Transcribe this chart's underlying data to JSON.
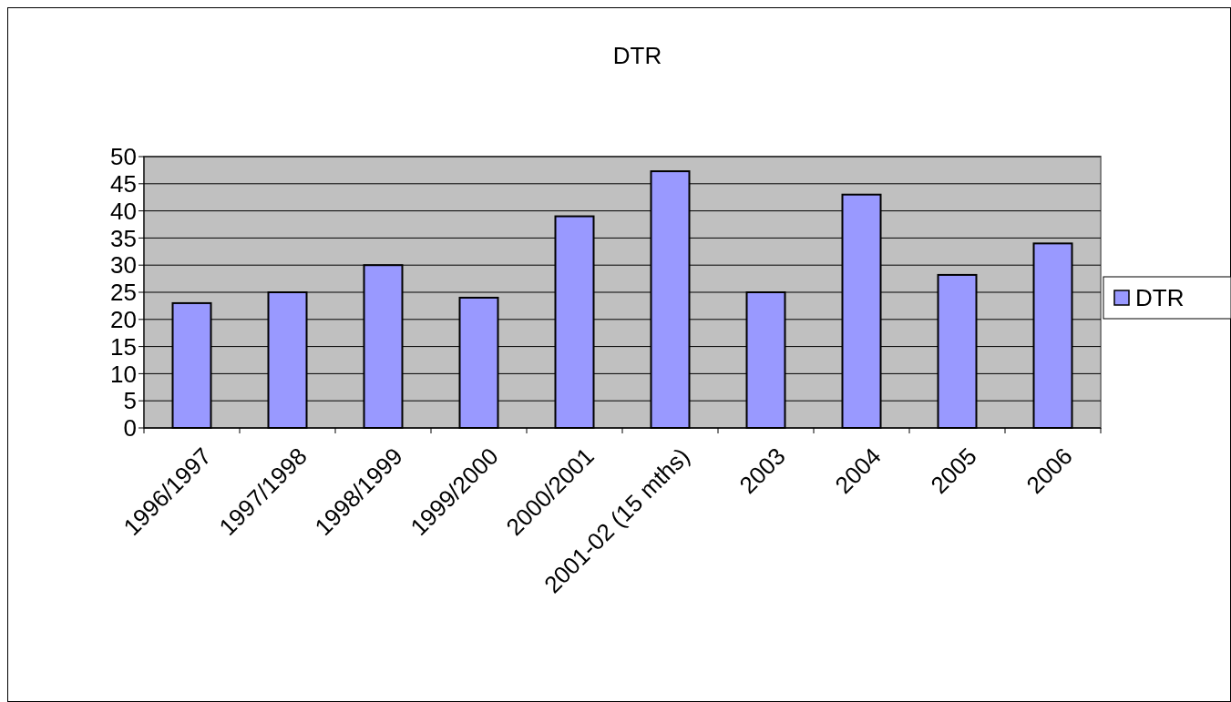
{
  "chart_data": {
    "type": "bar",
    "title": "DTR",
    "categories": [
      "1996/1997",
      "1997/1998",
      "1998/1999",
      "1999/2000",
      "2000/2001",
      "2001-02 (15 mths)",
      "2003",
      "2004",
      "2005",
      "2006"
    ],
    "series": [
      {
        "name": "DTR",
        "color": "#9999ff",
        "values": [
          23,
          25,
          30,
          24,
          39,
          47.3,
          25,
          43,
          28.2,
          34
        ]
      }
    ],
    "ylim": [
      0,
      50
    ],
    "yticks": [
      0,
      5,
      10,
      15,
      20,
      25,
      30,
      35,
      40,
      45,
      50
    ],
    "grid": "y",
    "legend": "right"
  }
}
